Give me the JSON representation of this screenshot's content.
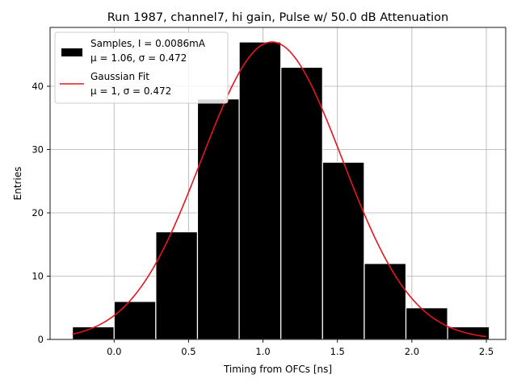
{
  "chart_data": {
    "type": "bar",
    "title": "Run 1987, channel7, hi gain, Pulse w/ 50.0 dB Attenuation",
    "xlabel": "Timing from OFCs [ns]",
    "ylabel": "Entries",
    "xlim": [
      -0.43,
      2.63
    ],
    "ylim": [
      0,
      49.3
    ],
    "xticks": [
      0.0,
      0.5,
      1.0,
      1.5,
      2.0,
      2.5
    ],
    "xtick_labels": [
      "0.0",
      "0.5",
      "1.0",
      "1.5",
      "2.0",
      "2.5"
    ],
    "yticks": [
      0,
      10,
      20,
      30,
      40
    ],
    "ytick_labels": [
      "0",
      "10",
      "20",
      "30",
      "40"
    ],
    "grid": true,
    "legend_position": "top-left",
    "colors": {
      "bars": "#000000",
      "bar_edge": "#ffffff",
      "fit": "#e8141d",
      "grid": "#b0b0b0"
    },
    "histogram": {
      "bin_edges": [
        -0.28,
        0.0,
        0.28,
        0.56,
        0.84,
        1.12,
        1.4,
        1.68,
        1.96,
        2.24,
        2.52
      ],
      "counts": [
        2,
        6,
        17,
        38,
        47,
        43,
        28,
        12,
        5,
        2
      ]
    },
    "fit": {
      "mean": 1.06,
      "sigma": 0.472,
      "amplitude": 47,
      "x_range": [
        -0.28,
        2.5
      ]
    },
    "legend": [
      {
        "marker": "rect",
        "color": "#000000",
        "line1": "Samples, I = 0.0086mA",
        "line2": "μ = 1.06, σ = 0.472"
      },
      {
        "marker": "line",
        "color": "#e8141d",
        "line1": "Gaussian Fit",
        "line2": "μ = 1, σ = 0.472"
      }
    ]
  }
}
